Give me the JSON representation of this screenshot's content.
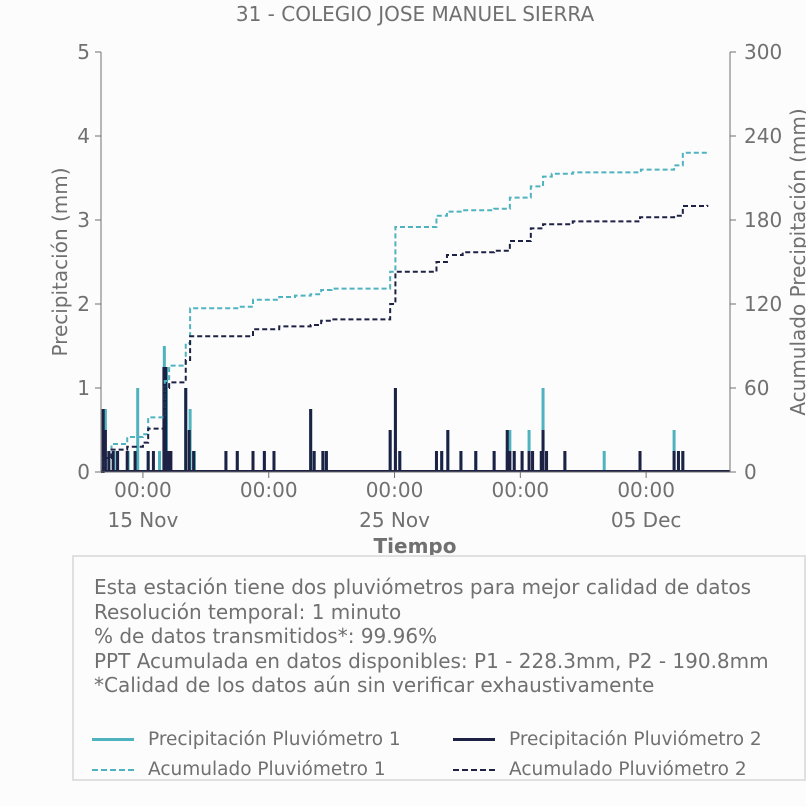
{
  "chart_data": {
    "type": "bar",
    "title": "31 - COLEGIO JOSE MANUEL SIERRA",
    "xlabel": "Tiempo",
    "ylabel": "Precipitación (mm)",
    "y2label": "Acumulado Precipitación (mm)",
    "ylim": [
      0,
      5
    ],
    "y2lim": [
      0,
      300
    ],
    "yticks": [
      "0",
      "1",
      "2",
      "3",
      "4",
      "5"
    ],
    "y2ticks": [
      "0",
      "60",
      "120",
      "180",
      "240",
      "300"
    ],
    "xlim": [
      "2024-11-13",
      "2024-12-13"
    ],
    "xticks": [
      {
        "t": "2024-11-15",
        "time": "00:00",
        "date": "15 Nov"
      },
      {
        "t": "2024-11-21",
        "time": "00:00",
        "date": ""
      },
      {
        "t": "2024-11-27",
        "time": "00:00",
        "date": "25 Nov"
      },
      {
        "t": "2024-12-03",
        "time": "00:00",
        "date": ""
      },
      {
        "t": "2024-12-09",
        "time": "00:00",
        "date": "05 Dec"
      }
    ],
    "colors": {
      "p1": "#4fb3bf",
      "p2": "#1d2144"
    },
    "series": [
      {
        "name": "Precipitación Pluviómetro 1",
        "style": "bars",
        "axis": "left",
        "points": [
          [
            "2024-11-13 03:00",
            0.5
          ],
          [
            "2024-11-13 05:00",
            0.75
          ],
          [
            "2024-11-13 09:00",
            0.25
          ],
          [
            "2024-11-13 14:00",
            0.25
          ],
          [
            "2024-11-13 18:00",
            0.25
          ],
          [
            "2024-11-14 07:00",
            0.25
          ],
          [
            "2024-11-14 18:00",
            1.0
          ],
          [
            "2024-11-15 06:00",
            0.25
          ],
          [
            "2024-11-15 19:00",
            0.25
          ],
          [
            "2024-11-16 00:30",
            1.5
          ],
          [
            "2024-11-16 03:00",
            1.25
          ],
          [
            "2024-11-16 07:00",
            0.25
          ],
          [
            "2024-11-17 01:00",
            1.0
          ],
          [
            "2024-11-17 06:00",
            0.75
          ],
          [
            "2024-11-17 11:00",
            0.25
          ],
          [
            "2024-11-18 23:00",
            0.25
          ],
          [
            "2024-11-19 12:00",
            0.25
          ],
          [
            "2024-11-20 06:00",
            0.25
          ],
          [
            "2024-11-20 19:00",
            0.25
          ],
          [
            "2024-11-21 06:00",
            0.25
          ],
          [
            "2024-11-23 00:00",
            0.75
          ],
          [
            "2024-11-23 04:00",
            0.25
          ],
          [
            "2024-11-23 14:00",
            0.25
          ],
          [
            "2024-11-23 18:00",
            0.25
          ],
          [
            "2024-11-26 19:00",
            0.5
          ],
          [
            "2024-11-27 01:00",
            1.0
          ],
          [
            "2024-11-27 06:00",
            0.25
          ],
          [
            "2024-11-29 00:00",
            0.25
          ],
          [
            "2024-11-29 06:00",
            0.25
          ],
          [
            "2024-11-29 13:00",
            0.5
          ],
          [
            "2024-11-30 04:00",
            0.25
          ],
          [
            "2024-11-30 21:00",
            0.25
          ],
          [
            "2024-12-01 18:00",
            0.25
          ],
          [
            "2024-12-02 09:00",
            0.25
          ],
          [
            "2024-12-02 12:00",
            0.5
          ],
          [
            "2024-12-02 17:00",
            0.25
          ],
          [
            "2024-12-03 02:00",
            0.25
          ],
          [
            "2024-12-03 10:00",
            0.5
          ],
          [
            "2024-12-03 14:00",
            0.25
          ],
          [
            "2024-12-04 00:00",
            0.25
          ],
          [
            "2024-12-04 02:00",
            1.0
          ],
          [
            "2024-12-04 06:00",
            0.25
          ],
          [
            "2024-12-05 03:00",
            0.25
          ],
          [
            "2024-12-07 00:00",
            0.25
          ],
          [
            "2024-12-08 17:00",
            0.25
          ],
          [
            "2024-12-10 08:00",
            0.5
          ],
          [
            "2024-12-10 13:00",
            0.25
          ],
          [
            "2024-12-10 18:00",
            0.25
          ]
        ]
      },
      {
        "name": "Precipitación Pluviómetro 2",
        "style": "bars",
        "axis": "left",
        "points": [
          [
            "2024-11-13 02:30",
            0.75
          ],
          [
            "2024-11-13 05:00",
            0.5
          ],
          [
            "2024-11-13 09:00",
            0.25
          ],
          [
            "2024-11-13 14:00",
            0.25
          ],
          [
            "2024-11-13 19:00",
            0.25
          ],
          [
            "2024-11-14 06:00",
            0.25
          ],
          [
            "2024-11-14 15:00",
            0.25
          ],
          [
            "2024-11-15 06:00",
            0.25
          ],
          [
            "2024-11-15 12:00",
            0.25
          ],
          [
            "2024-11-16 00:00",
            1.25
          ],
          [
            "2024-11-16 02:00",
            1.25
          ],
          [
            "2024-11-16 05:00",
            0.25
          ],
          [
            "2024-11-16 08:00",
            0.25
          ],
          [
            "2024-11-17 01:00",
            1.0
          ],
          [
            "2024-11-17 05:00",
            0.5
          ],
          [
            "2024-11-17 10:00",
            0.25
          ],
          [
            "2024-11-18 23:00",
            0.25
          ],
          [
            "2024-11-19 12:00",
            0.25
          ],
          [
            "2024-11-20 06:00",
            0.25
          ],
          [
            "2024-11-20 19:00",
            0.25
          ],
          [
            "2024-11-21 06:00",
            0.25
          ],
          [
            "2024-11-23 00:00",
            0.75
          ],
          [
            "2024-11-23 04:00",
            0.25
          ],
          [
            "2024-11-23 14:00",
            0.25
          ],
          [
            "2024-11-23 18:00",
            0.25
          ],
          [
            "2024-11-26 19:00",
            0.5
          ],
          [
            "2024-11-27 01:00",
            1.0
          ],
          [
            "2024-11-27 06:00",
            0.25
          ],
          [
            "2024-11-29 00:00",
            0.25
          ],
          [
            "2024-11-29 06:00",
            0.25
          ],
          [
            "2024-11-29 13:00",
            0.5
          ],
          [
            "2024-11-30 04:00",
            0.25
          ],
          [
            "2024-11-30 21:00",
            0.25
          ],
          [
            "2024-12-01 18:00",
            0.25
          ],
          [
            "2024-12-02 09:00",
            0.5
          ],
          [
            "2024-12-02 12:00",
            0.25
          ],
          [
            "2024-12-02 17:00",
            0.25
          ],
          [
            "2024-12-03 02:00",
            0.25
          ],
          [
            "2024-12-03 10:00",
            0.25
          ],
          [
            "2024-12-03 14:00",
            0.25
          ],
          [
            "2024-12-04 00:00",
            0.25
          ],
          [
            "2024-12-04 02:00",
            0.5
          ],
          [
            "2024-12-04 06:00",
            0.25
          ],
          [
            "2024-12-05 03:00",
            0.25
          ],
          [
            "2024-12-08 17:00",
            0.25
          ],
          [
            "2024-12-10 08:00",
            0.25
          ],
          [
            "2024-12-10 13:00",
            0.25
          ],
          [
            "2024-12-10 18:00",
            0.25
          ]
        ]
      },
      {
        "name": "Acumulado Pluviómetro 1",
        "style": "dashed-step",
        "axis": "right",
        "points": [
          [
            "2024-11-13 00:00",
            0
          ],
          [
            "2024-11-13 03:00",
            10
          ],
          [
            "2024-11-13 12:00",
            20
          ],
          [
            "2024-11-14 06:00",
            25
          ],
          [
            "2024-11-15 00:00",
            27
          ],
          [
            "2024-11-15 06:00",
            39
          ],
          [
            "2024-11-16 00:00",
            40
          ],
          [
            "2024-11-16 01:00",
            65
          ],
          [
            "2024-11-16 06:00",
            76
          ],
          [
            "2024-11-17 01:00",
            92
          ],
          [
            "2024-11-17 06:00",
            117
          ],
          [
            "2024-11-19 12:00",
            118
          ],
          [
            "2024-11-20 06:00",
            123
          ],
          [
            "2024-11-21 12:00",
            125
          ],
          [
            "2024-11-22 06:00",
            126
          ],
          [
            "2024-11-23 00:00",
            127
          ],
          [
            "2024-11-23 12:00",
            130
          ],
          [
            "2024-11-24 00:00",
            131
          ],
          [
            "2024-11-26 19:00",
            143
          ],
          [
            "2024-11-27 01:00",
            175
          ],
          [
            "2024-11-29 00:00",
            183
          ],
          [
            "2024-11-29 12:00",
            186
          ],
          [
            "2024-11-30 06:00",
            187
          ],
          [
            "2024-12-01 18:00",
            188
          ],
          [
            "2024-12-02 12:00",
            196
          ],
          [
            "2024-12-03 12:00",
            204
          ],
          [
            "2024-12-04 02:00",
            211
          ],
          [
            "2024-12-04 12:00",
            213
          ],
          [
            "2024-12-05 12:00",
            214
          ],
          [
            "2024-12-08 18:00",
            216
          ],
          [
            "2024-12-10 08:00",
            219
          ],
          [
            "2024-12-10 18:00",
            228
          ],
          [
            "2024-12-11 22:00",
            228.3
          ]
        ]
      },
      {
        "name": "Acumulado Pluviómetro 2",
        "style": "dashed-step",
        "axis": "right",
        "points": [
          [
            "2024-11-13 00:00",
            0
          ],
          [
            "2024-11-13 03:00",
            10
          ],
          [
            "2024-11-13 12:00",
            16
          ],
          [
            "2024-11-14 06:00",
            18
          ],
          [
            "2024-11-15 00:00",
            21
          ],
          [
            "2024-11-15 06:00",
            31
          ],
          [
            "2024-11-16 00:00",
            32
          ],
          [
            "2024-11-16 01:00",
            60
          ],
          [
            "2024-11-16 06:00",
            64
          ],
          [
            "2024-11-17 01:00",
            80
          ],
          [
            "2024-11-17 06:00",
            97
          ],
          [
            "2024-11-19 12:00",
            97
          ],
          [
            "2024-11-20 06:00",
            102
          ],
          [
            "2024-11-21 12:00",
            104
          ],
          [
            "2024-11-23 00:00",
            105
          ],
          [
            "2024-11-23 12:00",
            108
          ],
          [
            "2024-11-24 00:00",
            109
          ],
          [
            "2024-11-26 19:00",
            120
          ],
          [
            "2024-11-27 01:00",
            143
          ],
          [
            "2024-11-29 00:00",
            150
          ],
          [
            "2024-11-29 12:00",
            155
          ],
          [
            "2024-11-30 06:00",
            157
          ],
          [
            "2024-12-01 18:00",
            158
          ],
          [
            "2024-12-02 12:00",
            165
          ],
          [
            "2024-12-03 12:00",
            174
          ],
          [
            "2024-12-04 02:00",
            177
          ],
          [
            "2024-12-05 12:00",
            179
          ],
          [
            "2024-12-08 17:00",
            182
          ],
          [
            "2024-12-10 08:00",
            183
          ],
          [
            "2024-12-10 18:00",
            190
          ],
          [
            "2024-12-11 22:00",
            190.8
          ]
        ]
      }
    ]
  },
  "info": {
    "line1": "Esta estación tiene dos pluviómetros para mejor calidad de datos",
    "line2": "Resolución temporal: 1 minuto",
    "line3": "% de datos transmitidos*: 99.96%",
    "line4": "PPT Acumulada en datos disponibles: P1 - 228.3mm, P2 - 190.8mm",
    "line5": "*Calidad de los datos aún sin verificar exhaustivamente"
  },
  "legend": {
    "p1_precip": "Precipitación Pluviómetro 1",
    "p2_precip": "Precipitación Pluviómetro 2",
    "p1_acum": "Acumulado Pluviómetro 1",
    "p2_acum": "Acumulado Pluviómetro 2"
  }
}
